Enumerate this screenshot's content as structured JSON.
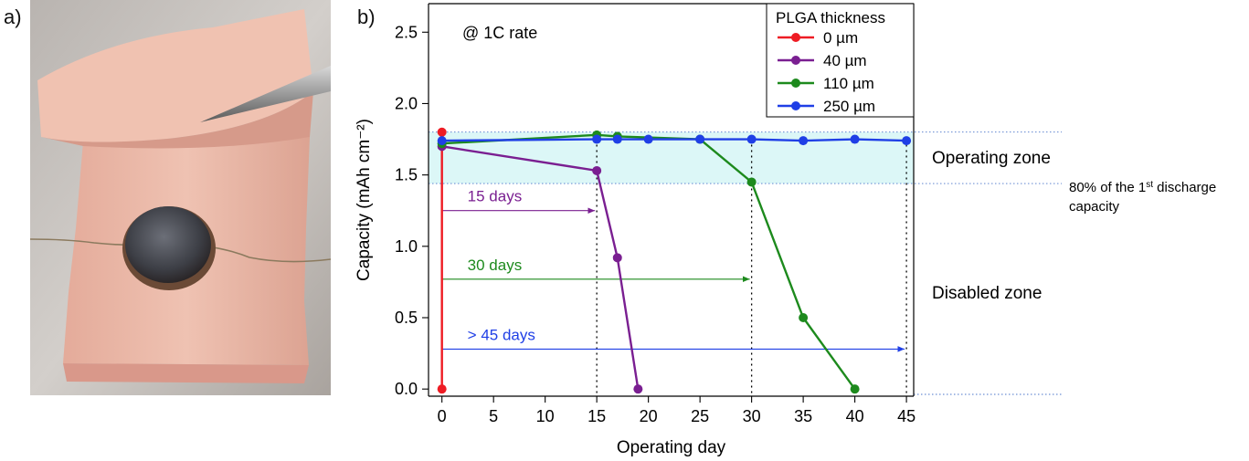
{
  "panel_labels": {
    "a": "a)",
    "b": "b)"
  },
  "colors": {
    "red": "#ee1c24",
    "purple": "#7a1f91",
    "green": "#1d8a1d",
    "blue": "#1f3fe6",
    "zone_fill": "#dcf7f7",
    "photo_bg": "#c7c2bd",
    "tissue": "#e9b5a5"
  },
  "chart_data": {
    "type": "line",
    "title": "",
    "annotation_rate": "@ 1C rate",
    "xlabel": "Operating day",
    "ylabel": "Capacity (mAh cm⁻²)",
    "xlim": [
      -1.3,
      45.7
    ],
    "ylim": [
      -0.05,
      2.7
    ],
    "x_ticks": [
      "0",
      "5",
      "10",
      "15",
      "20",
      "25",
      "30",
      "35",
      "40",
      "45"
    ],
    "y_ticks": [
      "0.0",
      "0.5",
      "1.0",
      "1.5",
      "2.0",
      "2.5"
    ],
    "legend_title": "PLGA thickness",
    "legend_position": "top-right",
    "series": [
      {
        "name": "0 µm",
        "color": "#ee1c24",
        "x": [
          0,
          0
        ],
        "y": [
          1.8,
          0.0
        ]
      },
      {
        "name": "40 µm",
        "color": "#7a1f91",
        "x": [
          0,
          15,
          17,
          19
        ],
        "y": [
          1.7,
          1.53,
          0.92,
          0.0
        ]
      },
      {
        "name": "110 µm",
        "color": "#1d8a1d",
        "x": [
          0,
          15,
          17,
          25,
          30,
          35,
          40
        ],
        "y": [
          1.72,
          1.78,
          1.77,
          1.75,
          1.45,
          0.5,
          0.0
        ]
      },
      {
        "name": "250 µm",
        "color": "#1f3fe6",
        "x": [
          0,
          15,
          17,
          20,
          25,
          30,
          35,
          40,
          45
        ],
        "y": [
          1.74,
          1.75,
          1.75,
          1.75,
          1.75,
          1.75,
          1.74,
          1.75,
          1.74
        ]
      }
    ],
    "operating_zone": {
      "y_min": 1.44,
      "y_max": 1.8
    },
    "durations": [
      {
        "label": "15 days",
        "end_day": 15,
        "y": 1.25,
        "color": "#7a1f91"
      },
      {
        "label": "30 days",
        "end_day": 30,
        "y": 0.77,
        "color": "#1d8a1d"
      },
      {
        "label": "> 45 days",
        "end_day": 45,
        "y": 0.28,
        "color": "#1f3fe6"
      }
    ],
    "cutoff_days": [
      15,
      30,
      45
    ],
    "zone_labels": {
      "operating": "Operating zone",
      "disabled": "Disabled zone",
      "threshold_prefix": "80% of the 1",
      "threshold_sup": "st",
      "threshold_suffix": " discharge",
      "threshold_line2": "capacity"
    }
  }
}
